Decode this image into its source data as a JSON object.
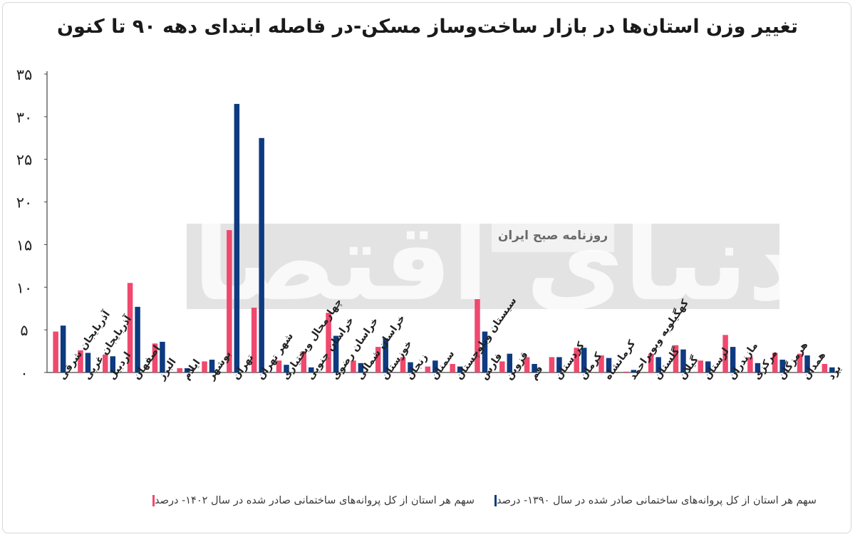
{
  "chart_data": {
    "type": "bar",
    "title": "تغییر وزن استان‌ها در بازار ساخت‌وساز مسکن-در فاصله ابتدای دهه ۹۰ تا کنون",
    "watermark": {
      "logo_text": "دنیای اقتصاد",
      "tagline": "روزنامه صبح ایران"
    },
    "ylim": [
      0,
      35
    ],
    "y_ticks": [
      0,
      5,
      10,
      15,
      20,
      25,
      30,
      35
    ],
    "y_tick_labels": [
      "۰",
      "۵",
      "۱۰",
      "۱۵",
      "۲۰",
      "۲۵",
      "۳۰",
      "۳۵"
    ],
    "grid": false,
    "legend_position": "bottom",
    "categories": [
      "آذربایجان شرقی",
      "آذربایجان غربی",
      "اردبیل",
      "اصفهان",
      "البرز",
      "ایلام",
      "بوشهر",
      "تهران",
      "شهر تهران",
      "چهارمحال وبختیاری",
      "خراسان جنوبی",
      "خراسان رضوی",
      "خراسان شمالی",
      "خوزستان",
      "زنجان",
      "سمنان",
      "سیستان وبلوچستان",
      "فارس",
      "قزوین",
      "قم",
      "کردستان",
      "کرمان",
      "کرمانشاه",
      "کهگیلویه وبویراحمد",
      "گلستان",
      "گیلان",
      "لرستان",
      "مازندران",
      "مرکزی",
      "هرمزگان",
      "همدان",
      "یزد"
    ],
    "series": [
      {
        "name": "سهم هر استان از کل پروانه‌های ساختمانی صادر شده در سال ۱۴۰۲- درصد",
        "color": "#f0486e",
        "values": [
          4.8,
          2.6,
          2.1,
          10.5,
          3.4,
          0.5,
          1.3,
          16.7,
          7.6,
          1.4,
          2.5,
          7.0,
          1.4,
          3.0,
          1.8,
          0.7,
          1.0,
          8.6,
          1.3,
          1.8,
          1.8,
          2.9,
          2.0,
          0.1,
          2.2,
          3.2,
          1.4,
          4.4,
          1.8,
          2.3,
          2.2,
          1.0
        ]
      },
      {
        "name": "سهم هر استان از کل پروانه‌های ساختمانی صادر شده در سال ۱۳۹۰- درصد",
        "color": "#0d3a80",
        "values": [
          5.5,
          2.3,
          1.9,
          7.7,
          3.6,
          0.5,
          1.5,
          31.5,
          27.5,
          0.9,
          0.6,
          4.3,
          1.1,
          4.0,
          1.2,
          1.4,
          0.7,
          4.8,
          2.2,
          1.0,
          1.8,
          2.9,
          1.7,
          0.3,
          1.8,
          2.7,
          1.3,
          3.0,
          1.1,
          1.5,
          2.0,
          0.6
        ]
      }
    ]
  }
}
